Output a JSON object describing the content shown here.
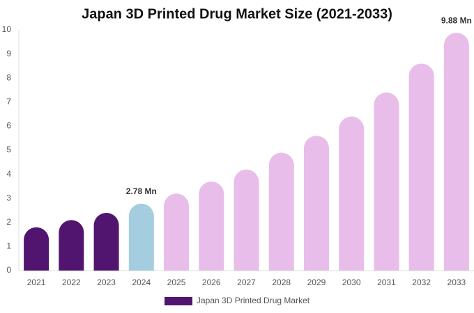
{
  "chart_data": {
    "type": "bar",
    "title": "Japan 3D Printed Drug Market Size (2021-2033)",
    "categories": [
      "2021",
      "2022",
      "2023",
      "2024",
      "2025",
      "2026",
      "2027",
      "2028",
      "2029",
      "2030",
      "2031",
      "2032",
      "2033"
    ],
    "series": [
      {
        "name": "Japan 3D Printed Drug Market",
        "color": "#52156f",
        "values": [
          1.8,
          2.1,
          2.4,
          2.78,
          3.2,
          3.7,
          4.2,
          4.9,
          5.6,
          6.4,
          7.4,
          8.6,
          9.88
        ],
        "colors": [
          "#52156f",
          "#52156f",
          "#52156f",
          "#a5cde0",
          "#e8bde9",
          "#e8bde9",
          "#e8bde9",
          "#e8bde9",
          "#e8bde9",
          "#e8bde9",
          "#e8bde9",
          "#e8bde9",
          "#e8bde9"
        ],
        "value_labels": [
          null,
          null,
          null,
          "2.78 Mn",
          null,
          null,
          null,
          null,
          null,
          null,
          null,
          null,
          "9.88 Mn"
        ]
      }
    ],
    "ylim": [
      0,
      10
    ],
    "yticks": [
      0,
      1,
      2,
      3,
      4,
      5,
      6,
      7,
      8,
      9,
      10
    ],
    "grid": false
  }
}
